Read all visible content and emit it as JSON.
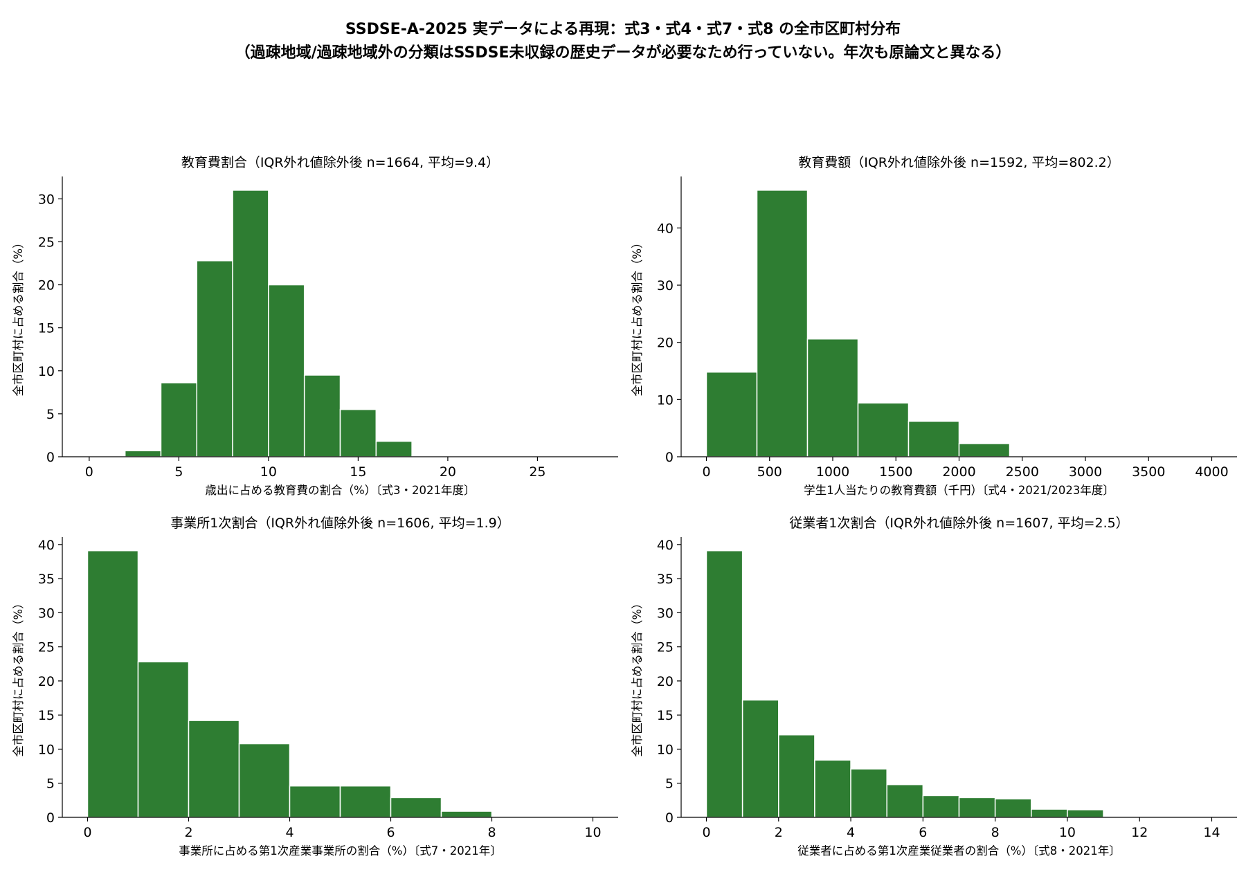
{
  "suptitle": {
    "line1": "SSDSE-A-2025 実データによる再現：式3・式4・式7・式8 の全市区町村分布",
    "line2": "（過疎地域/過疎地域外の分類はSSDSE未収録の歴史データが必要なため行っていない。年次も原論文と異なる）"
  },
  "colors": {
    "bar": "#2e7d32",
    "bar_edge": "#ffffff"
  },
  "chart_data": [
    {
      "type": "bar",
      "title": "教育費割合（IQR外れ値除外後 n=1664, 平均=9.4）",
      "xlabel": "歳出に占める教育費の割合（%）〔式3・2021年度〕",
      "ylabel": "全市区町村に占める割合（%）",
      "bin_edges": [
        2,
        4,
        6,
        8,
        10,
        12,
        14,
        16,
        18
      ],
      "values": [
        0.7,
        8.6,
        22.8,
        31.0,
        20.0,
        9.5,
        5.5,
        1.8
      ],
      "xlim": [
        -1.5,
        29.5
      ],
      "ylim": [
        0,
        32.6
      ],
      "xticks": [
        0,
        5,
        10,
        15,
        20,
        25
      ],
      "yticks": [
        0,
        5,
        10,
        15,
        20,
        25,
        30
      ]
    },
    {
      "type": "bar",
      "title": "教育費額（IQR外れ値除外後 n=1592, 平均=802.2）",
      "xlabel": "学生1人当たりの教育費額（千円）〔式4・2021/2023年度〕",
      "ylabel": "全市区町村に占める割合（%）",
      "bin_edges": [
        0,
        400,
        800,
        1200,
        1600,
        2000,
        2400
      ],
      "values": [
        14.8,
        46.6,
        20.6,
        9.4,
        6.2,
        2.3
      ],
      "xlim": [
        -200,
        4200
      ],
      "ylim": [
        0,
        49
      ],
      "xticks": [
        0,
        500,
        1000,
        1500,
        2000,
        2500,
        3000,
        3500,
        4000
      ],
      "yticks": [
        0,
        10,
        20,
        30,
        40
      ]
    },
    {
      "type": "bar",
      "title": "事業所1次割合（IQR外れ値除外後 n=1606, 平均=1.9）",
      "xlabel": "事業所に占める第1次産業事業所の割合（%）〔式7・2021年〕",
      "ylabel": "全市区町村に占める割合（%）",
      "bin_edges": [
        0,
        1,
        2,
        3,
        4,
        5,
        6,
        7,
        8
      ],
      "values": [
        39.1,
        22.8,
        14.2,
        10.8,
        4.6,
        4.6,
        2.9,
        0.9
      ],
      "xlim": [
        -0.5,
        10.5
      ],
      "ylim": [
        0,
        41.1
      ],
      "xticks": [
        0,
        2,
        4,
        6,
        8,
        10
      ],
      "yticks": [
        0,
        5,
        10,
        15,
        20,
        25,
        30,
        35,
        40
      ]
    },
    {
      "type": "bar",
      "title": "従業者1次割合（IQR外れ値除外後 n=1607, 平均=2.5）",
      "xlabel": "従業者に占める第1次産業従業者の割合（%）〔式8・2021年〕",
      "ylabel": "全市区町村に占める割合（%）",
      "bin_edges": [
        0,
        1,
        2,
        3,
        4,
        5,
        6,
        7,
        8,
        9,
        10,
        11
      ],
      "values": [
        39.1,
        17.2,
        12.1,
        8.4,
        7.1,
        4.8,
        3.2,
        2.9,
        2.7,
        1.2,
        1.1
      ],
      "xlim": [
        -0.7,
        14.7
      ],
      "ylim": [
        0,
        41.1
      ],
      "xticks": [
        0,
        2,
        4,
        6,
        8,
        10,
        12,
        14
      ],
      "yticks": [
        0,
        5,
        10,
        15,
        20,
        25,
        30,
        35,
        40
      ]
    }
  ]
}
